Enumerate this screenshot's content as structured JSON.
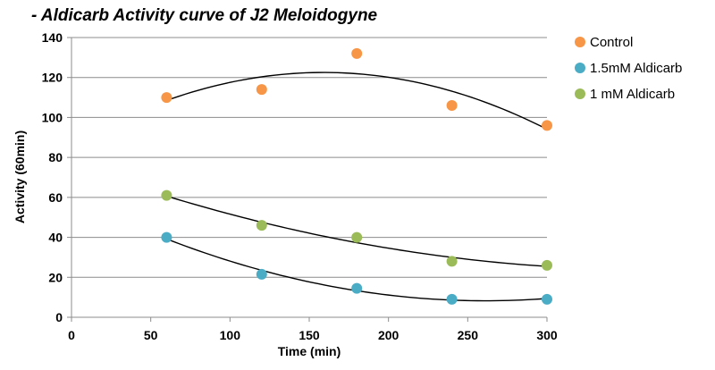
{
  "chart_data": {
    "type": "scatter",
    "title": "- Aldicarb Activity curve of J2 Meloidogyne",
    "xlabel": "Time (min)",
    "ylabel": "Activity (60min)",
    "xlim": [
      0,
      300
    ],
    "ylim": [
      0,
      140
    ],
    "xticks": [
      "0",
      "50",
      "100",
      "150",
      "200",
      "250",
      "300"
    ],
    "yticks": [
      "0",
      "20",
      "40",
      "60",
      "80",
      "100",
      "120",
      "140"
    ],
    "grid": "horizontal",
    "legend_position": "top-right",
    "trendlines": "polynomial (order 2) per series",
    "series": [
      {
        "name": "Control",
        "color": "#f79646",
        "x": [
          60,
          120,
          180,
          240,
          300
        ],
        "y": [
          110,
          114,
          132,
          106,
          96
        ]
      },
      {
        "name": "1.5mM Aldicarb",
        "color": "#4bacc6",
        "x": [
          60,
          120,
          180,
          240,
          300
        ],
        "y": [
          40,
          21.5,
          14.5,
          9,
          9
        ]
      },
      {
        "name": "1 mM Aldicarb",
        "color": "#9bbb59",
        "x": [
          60,
          120,
          180,
          240,
          300
        ],
        "y": [
          61,
          46,
          40,
          28,
          26
        ]
      }
    ]
  }
}
